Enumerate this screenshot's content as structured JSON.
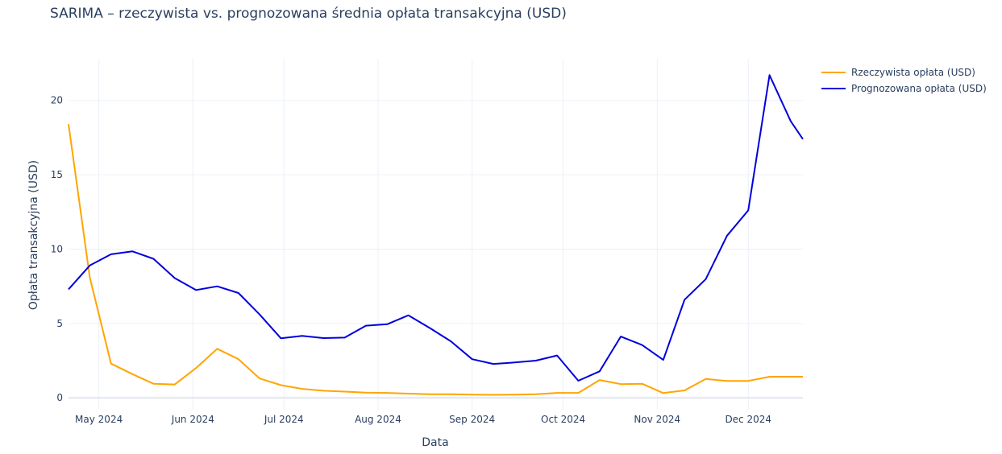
{
  "chart_data": {
    "type": "line",
    "title": "SARIMA – rzeczywista vs. prognozowana średnia opłata transakcyjna (USD)",
    "xlabel": "Data",
    "ylabel": "Opłata transakcyjna (USD)",
    "x_tick_labels": [
      "May 2024",
      "Jun 2024",
      "Jul 2024",
      "Aug 2024",
      "Sep 2024",
      "Oct 2024",
      "Nov 2024",
      "Dec 2024"
    ],
    "y_tick_labels": [
      "0",
      "5",
      "10",
      "15",
      "20"
    ],
    "ylim": [
      -0.8,
      22.8
    ],
    "xlim": [
      "2024-04-21",
      "2024-12-19"
    ],
    "grid": true,
    "legend_position": "top-right",
    "x": [
      "2024-04-21",
      "2024-04-28",
      "2024-05-05",
      "2024-05-12",
      "2024-05-19",
      "2024-05-26",
      "2024-06-02",
      "2024-06-09",
      "2024-06-16",
      "2024-06-23",
      "2024-06-30",
      "2024-07-07",
      "2024-07-14",
      "2024-07-21",
      "2024-07-28",
      "2024-08-04",
      "2024-08-11",
      "2024-08-18",
      "2024-08-25",
      "2024-09-01",
      "2024-09-08",
      "2024-09-15",
      "2024-09-22",
      "2024-09-29",
      "2024-10-06",
      "2024-10-13",
      "2024-10-20",
      "2024-10-27",
      "2024-11-03",
      "2024-11-10",
      "2024-11-17",
      "2024-11-24",
      "2024-12-01",
      "2024-12-08",
      "2024-12-15",
      "2024-12-19"
    ],
    "series": [
      {
        "name": "Rzeczywista opłata (USD)",
        "color": "#ffa500",
        "values": [
          18.4,
          8.1,
          2.3,
          1.6,
          0.95,
          0.9,
          2.0,
          3.3,
          2.6,
          1.3,
          0.85,
          0.6,
          0.48,
          0.42,
          0.35,
          0.33,
          0.28,
          0.24,
          0.24,
          0.22,
          0.2,
          0.22,
          0.24,
          0.33,
          0.33,
          1.2,
          0.92,
          0.95,
          0.32,
          0.5,
          1.27,
          1.13,
          1.14,
          1.42,
          1.42,
          1.42
        ]
      },
      {
        "name": "Prognozowana opłata (USD)",
        "color": "#0000dd",
        "values": [
          7.3,
          8.9,
          9.65,
          9.85,
          9.35,
          8.05,
          7.25,
          7.5,
          7.05,
          5.6,
          4.0,
          4.17,
          4.02,
          4.05,
          4.85,
          4.95,
          5.55,
          4.7,
          3.8,
          2.6,
          2.28,
          2.38,
          2.5,
          2.85,
          1.15,
          1.78,
          4.12,
          3.55,
          2.55,
          6.6,
          7.98,
          10.9,
          12.6,
          21.7,
          18.6,
          17.4
        ]
      }
    ]
  }
}
